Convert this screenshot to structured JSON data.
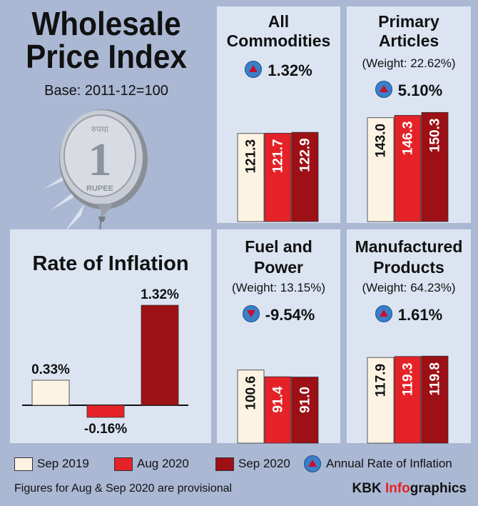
{
  "heading": {
    "line1": "Wholesale",
    "line2": "Price Index",
    "base": "Base: 2011-12=100"
  },
  "coin": {
    "numeral": "1",
    "rupee_text": "RUPEE",
    "hindi_text": "रुपया"
  },
  "colors": {
    "sep2019": "#fdf3e3",
    "aug2020": "#e52228",
    "sep2020": "#9c1016",
    "panel": "#dce4f2",
    "frame": "#aab8d4",
    "indicator": "#3a7fc8"
  },
  "panels": {
    "all": {
      "title_line1": "All",
      "title_line2": "Commodities",
      "rate": "1.32%",
      "direction": "up"
    },
    "primary": {
      "title_line1": "Primary",
      "title_line2": "Articles",
      "weight": "(Weight: 22.62%)",
      "rate": "5.10%",
      "direction": "up"
    },
    "fuel": {
      "title_line1": "Fuel and",
      "title_line2": "Power",
      "weight": "(Weight: 13.15%)",
      "rate": "-9.54%",
      "direction": "down"
    },
    "manufactured": {
      "title_line1": "Manufactured",
      "title_line2": "Products",
      "weight": "(Weight: 64.23%)",
      "rate": "1.61%",
      "direction": "up"
    }
  },
  "inflation": {
    "title": "Rate of Inflation"
  },
  "legend": {
    "sep2019": "Sep 2019",
    "aug2020": "Aug 2020",
    "sep2020": "Sep 2020",
    "annual": "Annual Rate of Inflation"
  },
  "footer": {
    "note": "Figures for Aug & Sep 2020 are provisional",
    "brand_a": "KBK ",
    "brand_b": "Info",
    "brand_c": "graphics"
  },
  "chart_data": [
    {
      "type": "bar",
      "title": "All Commodities",
      "categories": [
        "Sep 2019",
        "Aug 2020",
        "Sep 2020"
      ],
      "values": [
        121.3,
        121.7,
        122.9
      ],
      "labels": [
        "121.3",
        "121.7",
        "122.9"
      ]
    },
    {
      "type": "bar",
      "title": "Primary Articles",
      "categories": [
        "Sep 2019",
        "Aug 2020",
        "Sep 2020"
      ],
      "values": [
        143.0,
        146.3,
        150.3
      ],
      "labels": [
        "143.0",
        "146.3",
        "150.3"
      ]
    },
    {
      "type": "bar",
      "title": "Fuel and Power",
      "categories": [
        "Sep 2019",
        "Aug 2020",
        "Sep 2020"
      ],
      "values": [
        100.6,
        91.4,
        91.0
      ],
      "labels": [
        "100.6",
        "91.4",
        "91.0"
      ]
    },
    {
      "type": "bar",
      "title": "Manufactured Products",
      "categories": [
        "Sep 2019",
        "Aug 2020",
        "Sep 2020"
      ],
      "values": [
        117.9,
        119.3,
        119.8
      ],
      "labels": [
        "117.9",
        "119.3",
        "119.8"
      ]
    },
    {
      "type": "bar",
      "title": "Rate of Inflation",
      "categories": [
        "Sep 2019",
        "Aug 2020",
        "Sep 2020"
      ],
      "values": [
        0.33,
        -0.16,
        1.32
      ],
      "labels": [
        "0.33%",
        "-0.16%",
        "1.32%"
      ]
    }
  ]
}
